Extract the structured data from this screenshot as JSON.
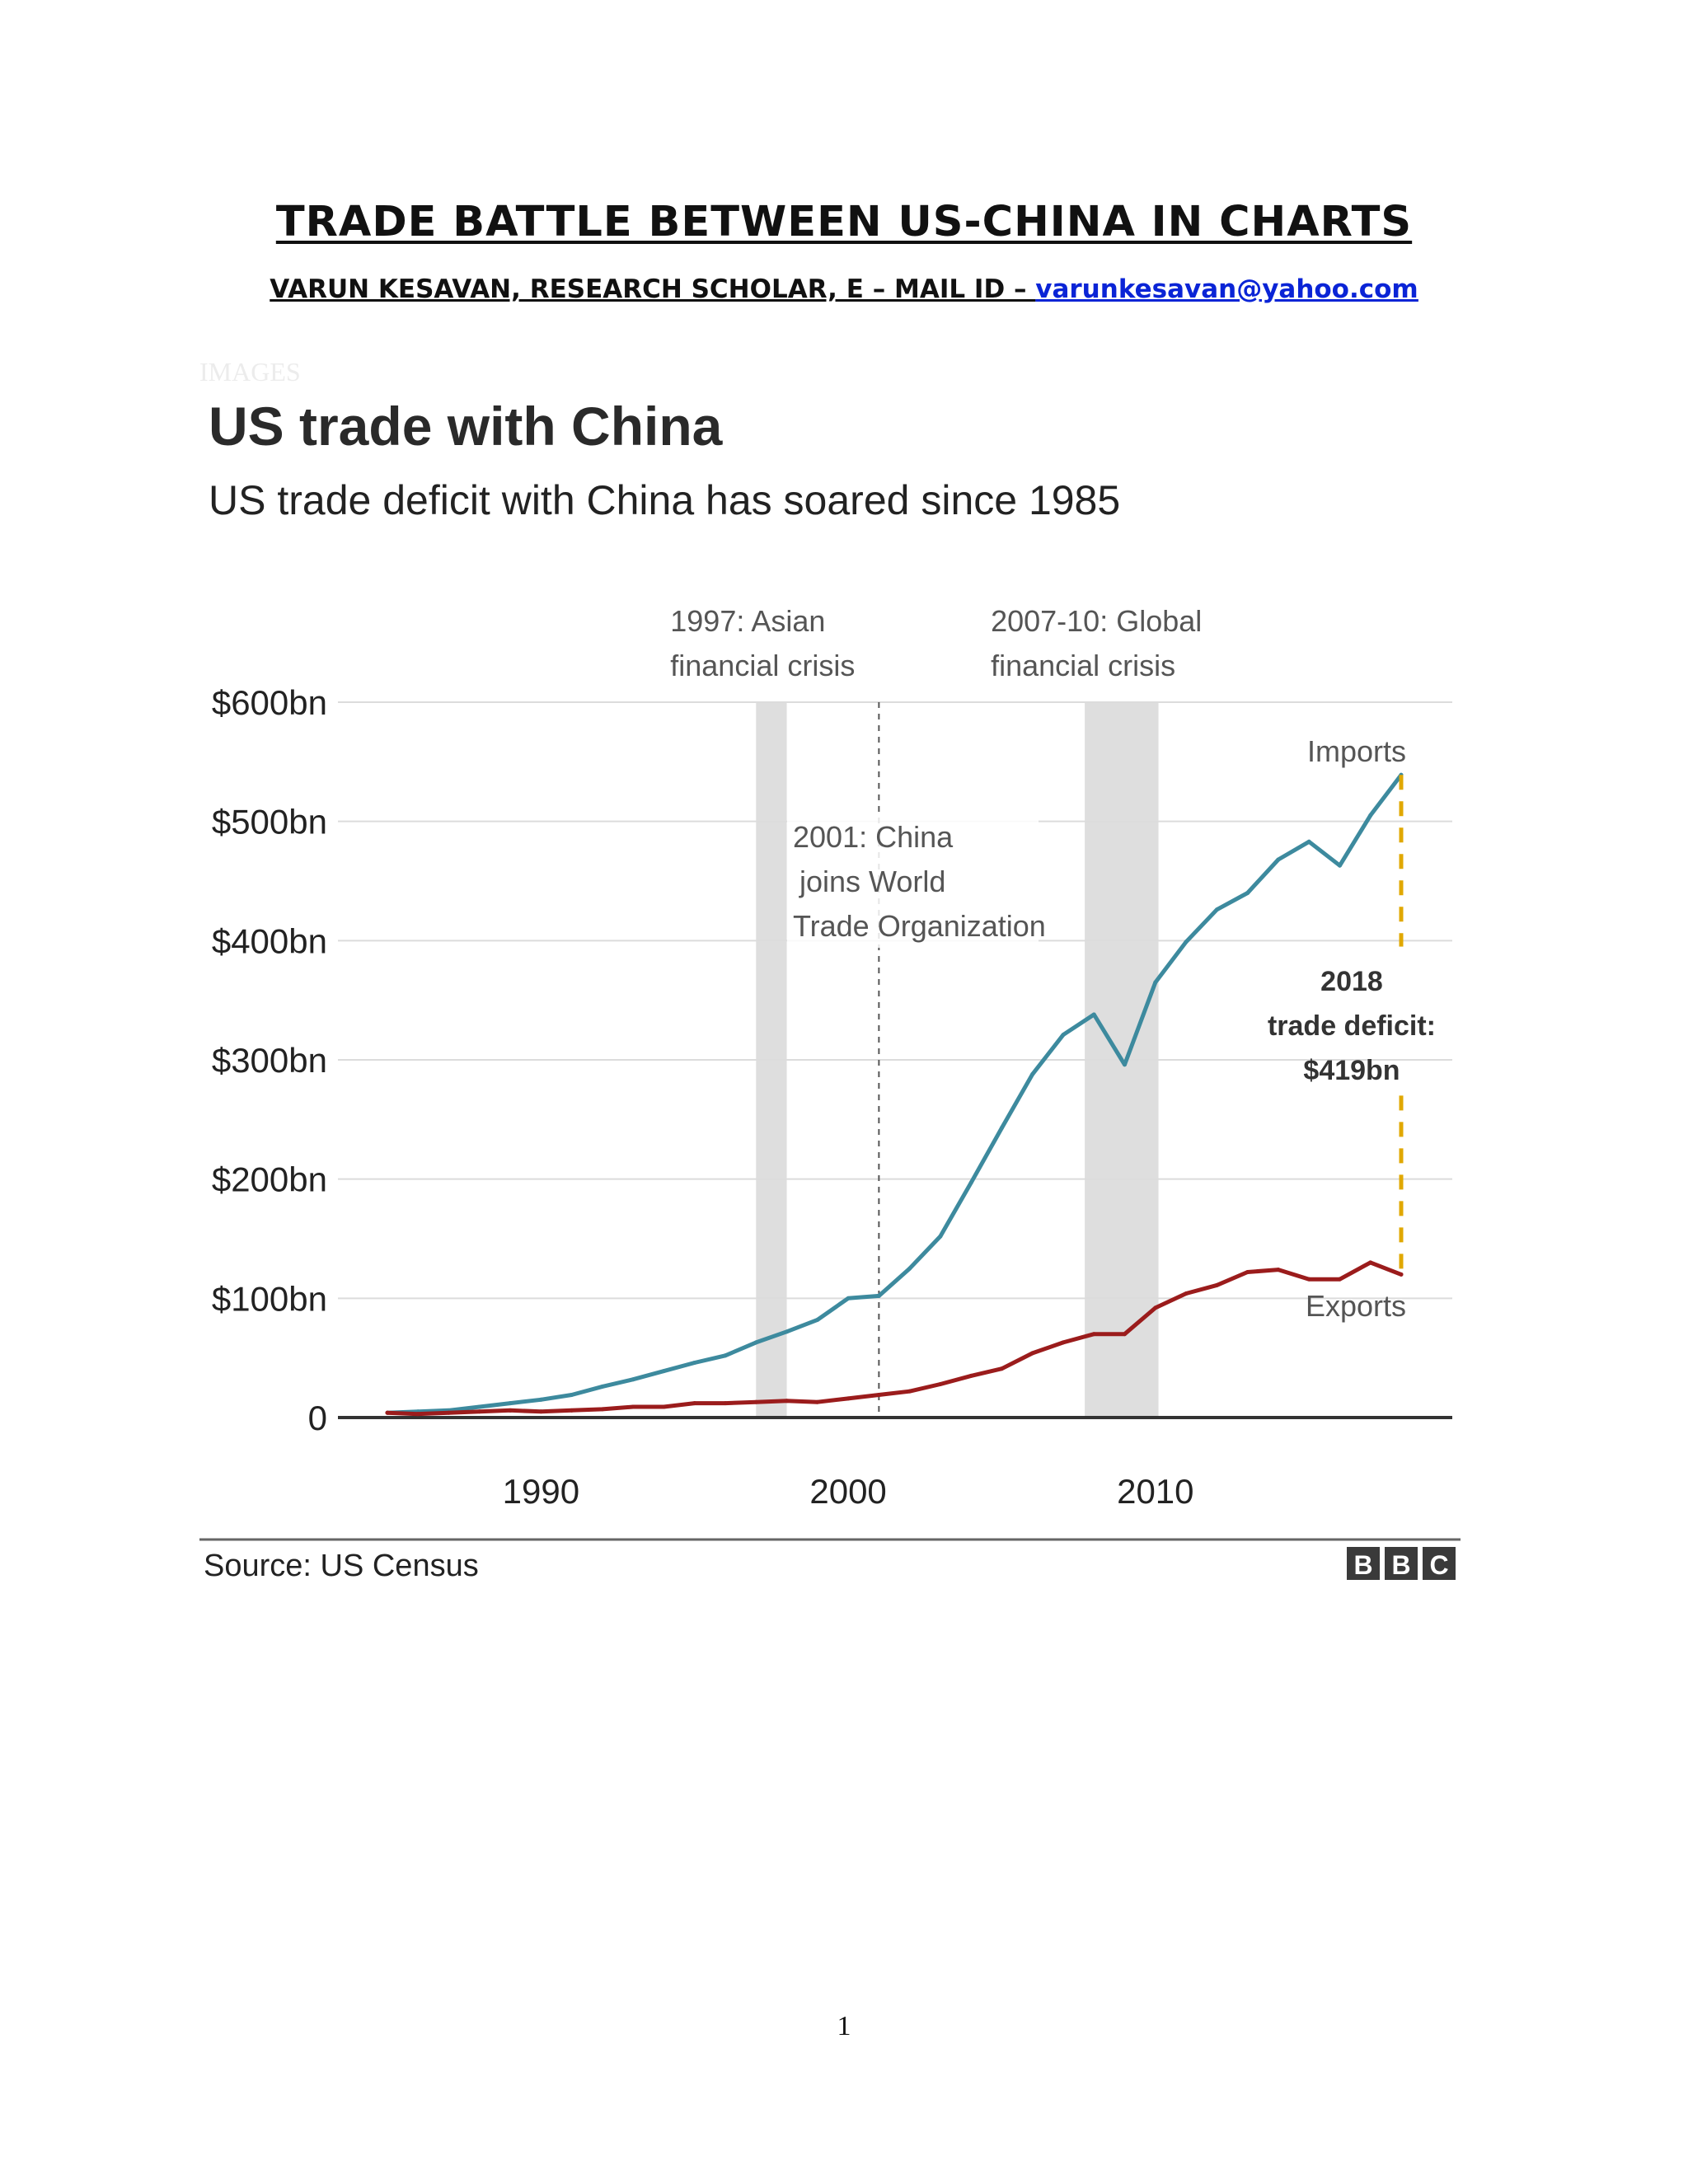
{
  "document": {
    "title": "TRADE BATTLE BETWEEN US-CHINA IN CHARTS",
    "byline": "VARUN KESAVAN, RESEARCH SCHOLAR, E – MAIL ID – ",
    "email": "varunkesavan@yahoo.com",
    "images_label": "IMAGES",
    "page_number": "1"
  },
  "chart_data": {
    "type": "line",
    "title": "US trade with China",
    "subtitle": "US trade deficit with China has soared since 1985",
    "xlim": [
      1985,
      2018
    ],
    "ylim": [
      0,
      600
    ],
    "y_ticks": [
      {
        "value": 600,
        "label": "$600bn"
      },
      {
        "value": 500,
        "label": "$500bn"
      },
      {
        "value": 400,
        "label": "$400bn"
      },
      {
        "value": 300,
        "label": "$300bn"
      },
      {
        "value": 200,
        "label": "$200bn"
      },
      {
        "value": 100,
        "label": "$100bn"
      },
      {
        "value": 0,
        "label": "0"
      }
    ],
    "x_ticks": [
      {
        "value": 1990,
        "label": "1990"
      },
      {
        "value": 2000,
        "label": "2000"
      },
      {
        "value": 2010,
        "label": "2010"
      }
    ],
    "grid": true,
    "x": [
      1985,
      1986,
      1987,
      1988,
      1989,
      1990,
      1991,
      1992,
      1993,
      1994,
      1995,
      1996,
      1997,
      1998,
      1999,
      2000,
      2001,
      2002,
      2003,
      2004,
      2005,
      2006,
      2007,
      2008,
      2009,
      2010,
      2011,
      2012,
      2013,
      2014,
      2015,
      2016,
      2017,
      2018
    ],
    "series": [
      {
        "name": "Imports",
        "color": "#3d8a9e",
        "values": [
          4,
          5,
          6,
          9,
          12,
          15,
          19,
          26,
          32,
          39,
          46,
          52,
          63,
          72,
          82,
          100,
          102,
          125,
          152,
          197,
          243,
          288,
          321,
          338,
          296,
          365,
          399,
          426,
          440,
          468,
          483,
          463,
          505,
          539
        ]
      },
      {
        "name": "Exports",
        "color": "#9b1c1c",
        "values": [
          4,
          3,
          4,
          5,
          6,
          5,
          6,
          7,
          9,
          9,
          12,
          12,
          13,
          14,
          13,
          16,
          19,
          22,
          28,
          35,
          41,
          54,
          63,
          70,
          70,
          92,
          104,
          111,
          122,
          124,
          116,
          116,
          130,
          120
        ]
      }
    ],
    "shaded_periods": [
      {
        "from": 1997,
        "to": 1998,
        "label_lines": [
          "1997: Asian",
          "financial crisis"
        ]
      },
      {
        "from": 2007.7,
        "to": 2010.1,
        "label_lines": [
          "2007-10: Global",
          "financial crisis"
        ]
      }
    ],
    "event_lines": [
      {
        "x": 2001,
        "label_lines": [
          "2001: China",
          "joins World",
          "Trade Organization"
        ]
      }
    ],
    "deficit_annotation": {
      "year": 2018,
      "label_lines": [
        "2018",
        "trade deficit:",
        "$419bn"
      ],
      "color": "#e0a800"
    },
    "source": "Source: US Census",
    "logo_letters": [
      "B",
      "B",
      "C"
    ],
    "colors": {
      "grid": "#dcdcdc",
      "shade": "#dedede",
      "axis": "#333333",
      "text": "#222222",
      "annotation_text": "#555555"
    }
  }
}
